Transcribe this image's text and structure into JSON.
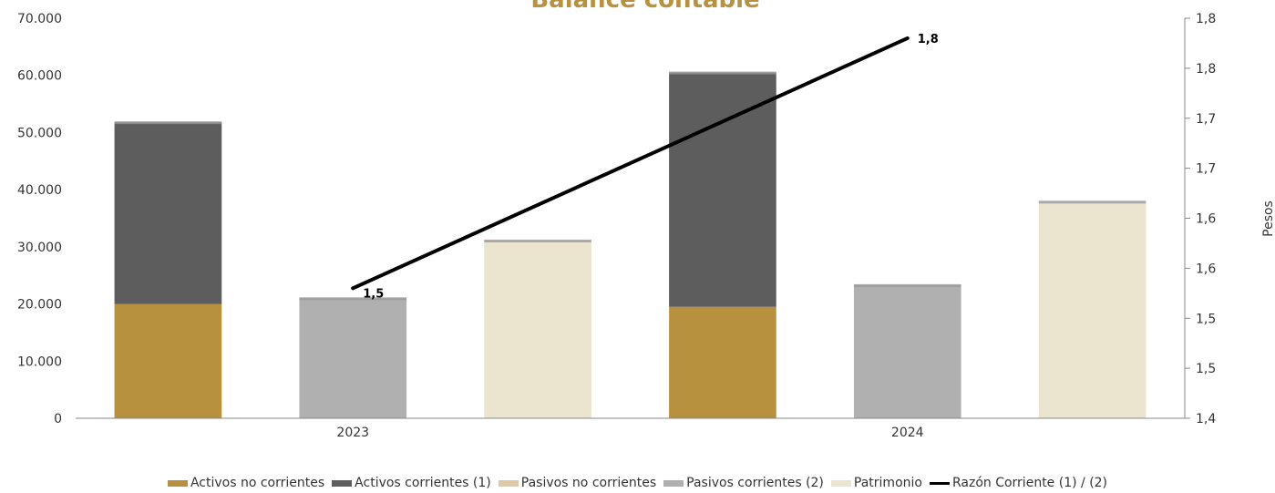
{
  "chart_data": {
    "type": "bar",
    "title": "Balance contable",
    "categories": [
      "2023",
      "2024"
    ],
    "y_left": {
      "ylim": [
        0,
        70000
      ],
      "ticks": [
        "0",
        "10.000",
        "20.000",
        "30.000",
        "40.000",
        "50.000",
        "60.000",
        "70.000"
      ]
    },
    "y_right": {
      "label": "Pesos",
      "ylim": [
        1.4,
        1.8
      ],
      "ticks": [
        "1,4",
        "1,5",
        "1,5",
        "1,6",
        "1,6",
        "1,7",
        "1,7",
        "1,8",
        "1,8"
      ]
    },
    "series": [
      {
        "name": "Activos no corrientes",
        "stack": "activos",
        "values": [
          20000,
          19500
        ],
        "color": "#b8913f"
      },
      {
        "name": "Activos corrientes (1)",
        "stack": "activos",
        "values": [
          31800,
          41000
        ],
        "color": "#5d5d5d"
      },
      {
        "name": "Pasivos no corrientes",
        "stack": "pasivos",
        "values": [
          0,
          0
        ],
        "color": "#ddc9a3"
      },
      {
        "name": "Pasivos corrientes (2)",
        "stack": "pasivos",
        "values": [
          21000,
          23300
        ],
        "color": "#b0b0b0"
      },
      {
        "name": "Patrimonio",
        "stack": "patrimonio",
        "values": [
          31100,
          37900
        ],
        "color": "#ebe5cf"
      },
      {
        "name": "Razón Corriente (1) / (2)",
        "type": "line",
        "axis": "right",
        "values": [
          1.53,
          1.78
        ],
        "labels": [
          "1,5",
          "1,8"
        ],
        "color": "#000000"
      }
    ],
    "legend_position": "bottom",
    "grid": false
  }
}
